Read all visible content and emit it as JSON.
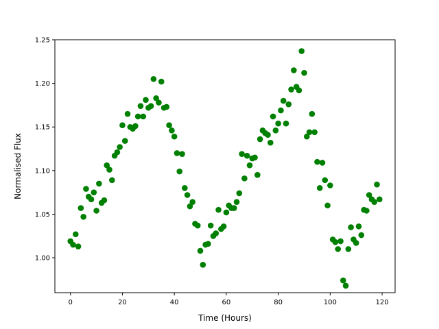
{
  "chart_data": {
    "type": "scatter",
    "title": "",
    "xlabel": "Time (Hours)",
    "ylabel": "Normalised Flux",
    "xlim": [
      -6,
      125
    ],
    "ylim": [
      0.96,
      1.25
    ],
    "xticks": [
      0,
      20,
      40,
      60,
      80,
      100,
      120
    ],
    "xtick_labels": [
      "0",
      "20",
      "40",
      "60",
      "80",
      "100",
      "120"
    ],
    "yticks": [
      1.0,
      1.05,
      1.1,
      1.15,
      1.2,
      1.25
    ],
    "ytick_labels": [
      "1.00",
      "1.05",
      "1.10",
      "1.15",
      "1.20",
      "1.25"
    ],
    "grid": false,
    "legend": "none",
    "marker_color": "#008000",
    "series": [
      {
        "x": [
          0,
          1,
          2,
          3,
          4,
          5,
          6,
          7,
          8,
          9,
          10,
          11,
          12,
          13,
          14,
          15,
          16,
          17,
          18,
          19,
          20,
          21,
          22,
          23,
          24,
          25,
          26,
          27,
          28,
          29,
          30,
          31,
          32,
          33,
          34,
          35,
          36,
          37,
          38,
          39,
          40,
          41,
          42,
          43,
          44,
          45,
          46,
          47,
          48,
          49,
          50,
          51,
          52,
          53,
          54,
          55,
          56,
          57,
          58,
          59,
          60,
          61,
          62,
          63,
          64,
          65,
          66,
          67,
          68,
          69,
          70,
          71,
          72,
          73,
          74,
          75,
          76,
          77,
          78,
          79,
          80,
          81,
          82,
          83,
          84,
          85,
          86,
          87,
          88,
          89,
          90,
          91,
          92,
          93,
          94,
          95,
          96,
          97,
          98,
          99,
          100,
          101,
          102,
          103,
          104,
          105,
          106,
          107,
          108,
          109,
          110,
          111,
          112,
          113,
          114,
          115,
          116,
          117,
          118,
          119
        ],
        "y": [
          1.019,
          1.015,
          1.027,
          1.013,
          1.057,
          1.047,
          1.079,
          1.07,
          1.067,
          1.075,
          1.054,
          1.085,
          1.063,
          1.066,
          1.106,
          1.101,
          1.089,
          1.117,
          1.121,
          1.127,
          1.152,
          1.134,
          1.165,
          1.15,
          1.148,
          1.151,
          1.162,
          1.174,
          1.162,
          1.181,
          1.172,
          1.174,
          1.205,
          1.183,
          1.178,
          1.202,
          1.172,
          1.173,
          1.152,
          1.146,
          1.139,
          1.12,
          1.099,
          1.119,
          1.08,
          1.072,
          1.059,
          1.064,
          1.039,
          1.037,
          1.008,
          0.992,
          1.015,
          1.016,
          1.037,
          1.025,
          1.028,
          1.055,
          1.033,
          1.036,
          1.052,
          1.06,
          1.057,
          1.057,
          1.064,
          1.074,
          1.119,
          1.091,
          1.117,
          1.106,
          1.114,
          1.115,
          1.095,
          1.136,
          1.146,
          1.143,
          1.141,
          1.132,
          1.162,
          1.146,
          1.154,
          1.169,
          1.18,
          1.154,
          1.176,
          1.193,
          1.215,
          1.196,
          1.192,
          1.237,
          1.212,
          1.139,
          1.144,
          1.165,
          1.144,
          1.11,
          1.08,
          1.109,
          1.089,
          1.06,
          1.083,
          1.021,
          1.018,
          1.01,
          1.019,
          0.974,
          0.968,
          1.01,
          1.035,
          1.021,
          1.017,
          1.036,
          1.026,
          1.055,
          1.054,
          1.072,
          1.067,
          1.064,
          1.084,
          1.067
        ]
      }
    ]
  }
}
